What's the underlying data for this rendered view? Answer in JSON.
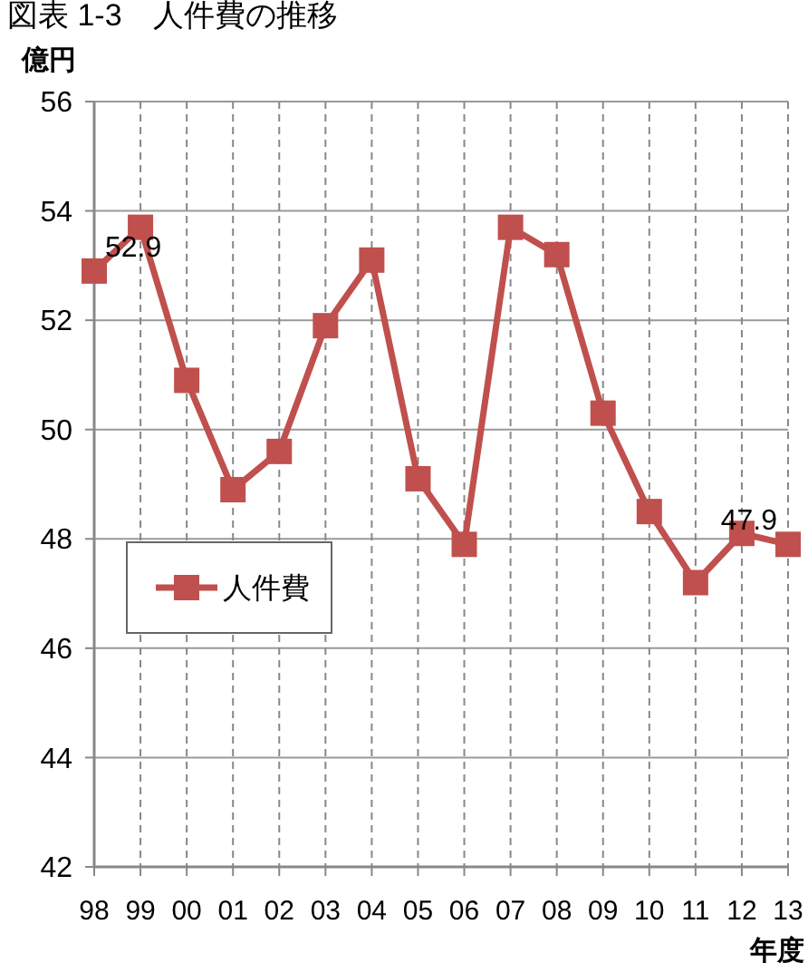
{
  "chart_data": {
    "type": "line",
    "title": "図表 1-3　人件費の推移",
    "ylabel": "億円",
    "xlabel": "年度",
    "categories": [
      "98",
      "99",
      "00",
      "01",
      "02",
      "03",
      "04",
      "05",
      "06",
      "07",
      "08",
      "09",
      "10",
      "11",
      "12",
      "13"
    ],
    "series": [
      {
        "name": "人件費",
        "color": "#c0504d",
        "values": [
          52.9,
          53.7,
          50.9,
          48.9,
          49.6,
          51.9,
          53.1,
          49.1,
          47.9,
          53.7,
          53.2,
          50.3,
          48.5,
          47.2,
          48.1,
          47.9
        ],
        "value_labels": [
          "52.9",
          null,
          null,
          null,
          null,
          null,
          null,
          null,
          null,
          null,
          null,
          null,
          null,
          null,
          null,
          "47.9"
        ]
      }
    ],
    "ylim": [
      42,
      56
    ],
    "yticks": [
      42,
      44,
      46,
      48,
      50,
      52,
      54,
      56
    ],
    "grid": true,
    "legend": "left",
    "marker": "square",
    "line_style": "solid"
  }
}
